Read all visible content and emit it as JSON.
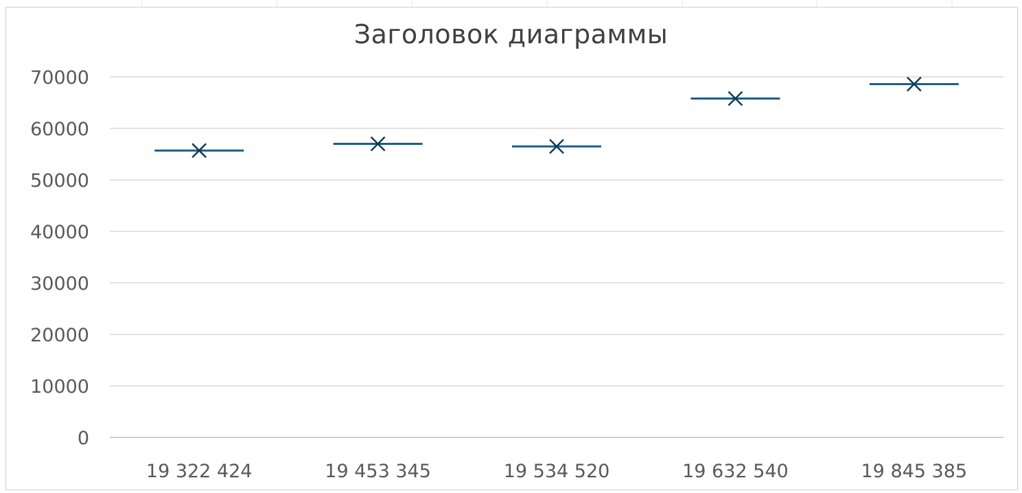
{
  "chart_data": {
    "type": "scatter",
    "title": "Заголовок диаграммы",
    "categories": [
      "19 322 424",
      "19 453 345",
      "19 534 520",
      "19 632 540",
      "19 845 385"
    ],
    "series": [
      {
        "marker": "high-low-dash-with-x",
        "values": [
          55700,
          57000,
          56500,
          65800,
          68600
        ]
      }
    ],
    "ylim": [
      0,
      70000
    ],
    "yticks": [
      "0",
      "10000",
      "20000",
      "30000",
      "40000",
      "50000",
      "60000",
      "70000"
    ],
    "grid": "horizontal",
    "legend": "none",
    "xlabel": "",
    "ylabel": ""
  },
  "colors": {
    "marker": "#0e3a55",
    "dash": "#1b5f86",
    "gridline": "#d9d9d9",
    "axis": "#bfbfbf",
    "text": "#595959"
  }
}
